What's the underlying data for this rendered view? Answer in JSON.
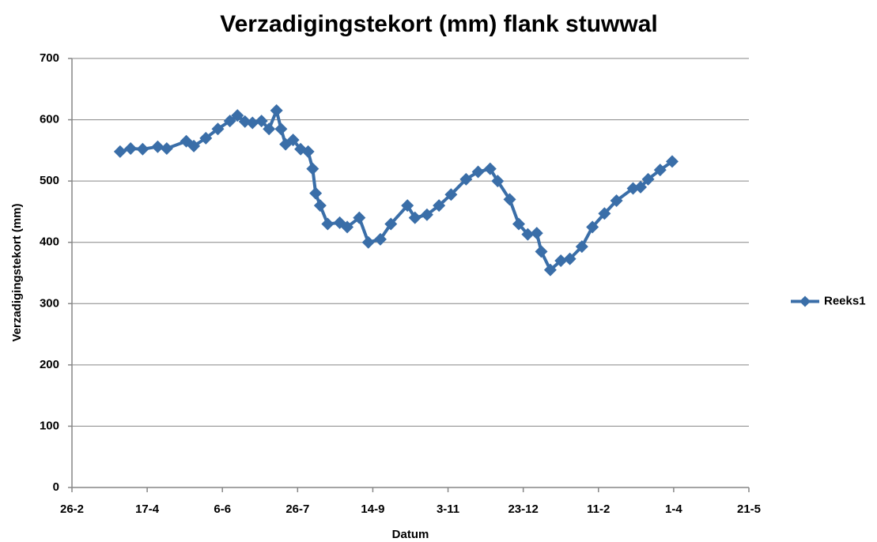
{
  "chart_data": {
    "type": "line",
    "title": "Verzadigingstekort (mm) flank stuwwal",
    "x_label": "Datum",
    "y_label": "Verzadigingstekort  (mm)",
    "x": [
      32,
      39,
      47,
      57,
      63,
      76,
      81,
      89,
      97,
      105,
      110,
      115,
      120,
      126,
      131,
      136,
      139,
      142,
      147,
      152,
      157,
      160,
      162,
      165,
      170,
      178,
      183,
      191,
      197,
      205,
      212,
      223,
      228,
      236,
      244,
      252,
      262,
      270,
      278,
      283,
      291,
      297,
      303,
      309,
      312,
      318,
      325,
      331,
      339,
      346,
      354,
      362,
      373,
      378,
      383,
      391,
      399
    ],
    "series": [
      {
        "name": "Reeks1",
        "color": "#3a6ea8",
        "values": [
          548,
          553,
          552,
          556,
          553,
          565,
          557,
          570,
          585,
          598,
          607,
          597,
          595,
          598,
          585,
          615,
          585,
          560,
          567,
          552,
          548,
          520,
          480,
          460,
          430,
          432,
          425,
          440,
          400,
          405,
          430,
          460,
          440,
          445,
          460,
          478,
          503,
          515,
          520,
          500,
          470,
          430,
          413,
          415,
          385,
          355,
          370,
          373,
          393,
          425,
          447,
          468,
          488,
          490,
          503,
          518,
          532
        ]
      }
    ],
    "xlim": [
      0,
      450
    ],
    "xticks": [
      {
        "value": 0,
        "label": "26-2"
      },
      {
        "value": 50,
        "label": "17-4"
      },
      {
        "value": 100,
        "label": "6-6"
      },
      {
        "value": 150,
        "label": "26-7"
      },
      {
        "value": 200,
        "label": "14-9"
      },
      {
        "value": 250,
        "label": "3-11"
      },
      {
        "value": 300,
        "label": "23-12"
      },
      {
        "value": 350,
        "label": "11-2"
      },
      {
        "value": 400,
        "label": "1-4"
      },
      {
        "value": 450,
        "label": "21-5"
      }
    ],
    "ylim": [
      0,
      700
    ],
    "yticks": [
      0,
      100,
      200,
      300,
      400,
      500,
      600,
      700
    ],
    "grid": true,
    "legend": "right"
  }
}
